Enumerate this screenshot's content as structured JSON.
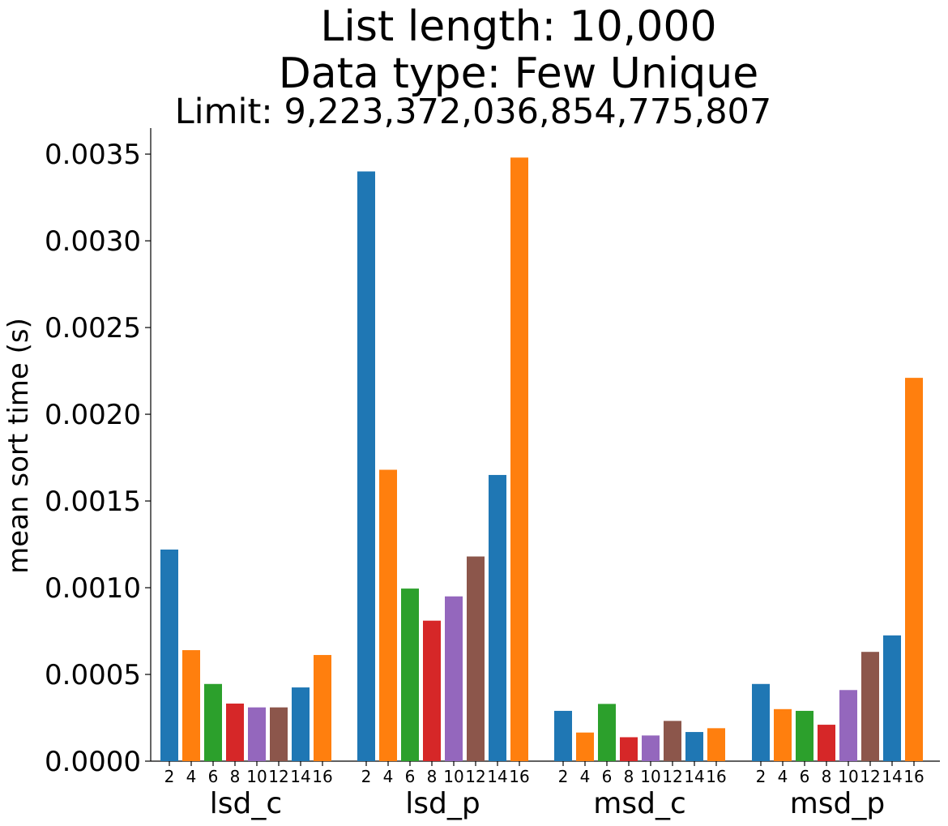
{
  "chart_data": {
    "type": "bar",
    "title_lines": [
      "List length: 10,000",
      "Data type: Few Unique"
    ],
    "subtitle": "Limit: 9,223,372,036,854,775,807",
    "ylabel": "mean sort time (s)",
    "ylim": [
      0,
      0.00365
    ],
    "yticks": [
      "0.0000",
      "0.0005",
      "0.0010",
      "0.0015",
      "0.0020",
      "0.0025",
      "0.0030",
      "0.0035"
    ],
    "ytick_values": [
      0,
      0.0005,
      0.001,
      0.0015,
      0.002,
      0.0025,
      0.003,
      0.0035
    ],
    "subcategories": [
      "2",
      "4",
      "6",
      "8",
      "10",
      "12",
      "14",
      "16"
    ],
    "colors": [
      "#1f77b4",
      "#ff7f0e",
      "#2ca02c",
      "#d62728",
      "#9467bd",
      "#8c564b",
      "#1f77b4",
      "#ff7f0e"
    ],
    "groups": [
      {
        "name": "lsd_c",
        "values": [
          0.00122,
          0.00064,
          0.000445,
          0.000332,
          0.00031,
          0.00031,
          0.000425,
          0.000612
        ]
      },
      {
        "name": "lsd_p",
        "values": [
          0.0034,
          0.00168,
          0.000995,
          0.00081,
          0.00095,
          0.00118,
          0.00165,
          0.00348
        ]
      },
      {
        "name": "msd_c",
        "values": [
          0.00029,
          0.000165,
          0.00033,
          0.000138,
          0.000148,
          0.000232,
          0.000168,
          0.00019
        ]
      },
      {
        "name": "msd_p",
        "values": [
          0.000445,
          0.0003,
          0.00029,
          0.00021,
          0.00041,
          0.00063,
          0.000725,
          0.00221
        ]
      }
    ],
    "grid": false,
    "legend": "none"
  }
}
